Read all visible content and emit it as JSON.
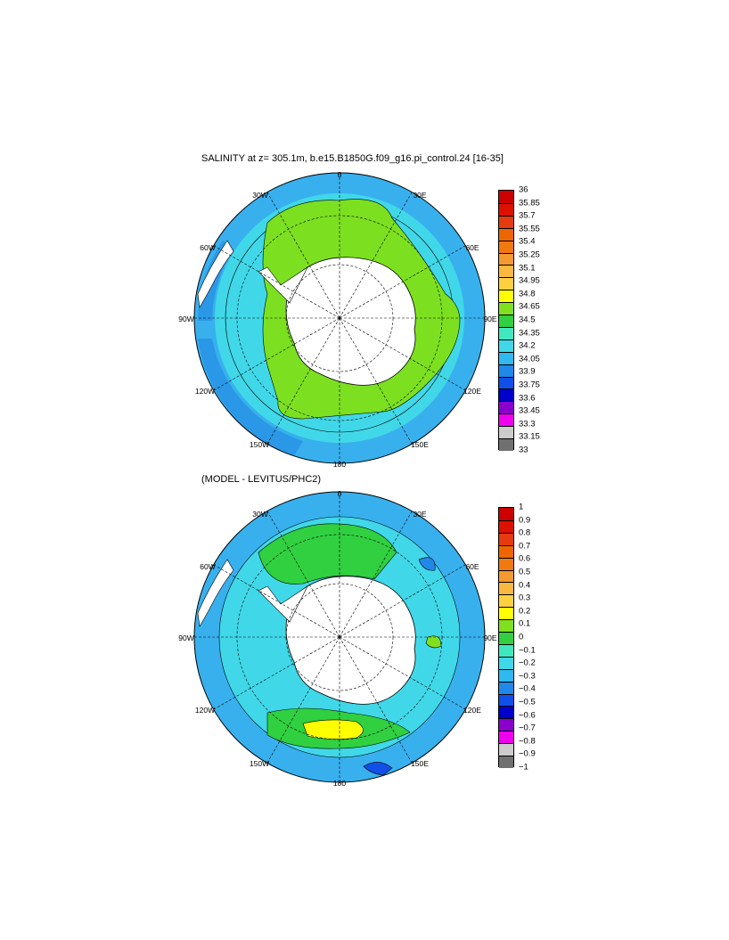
{
  "panel1": {
    "title": "SALINITY at z= 305.1m, b.e15.B1850G.f09_g16.pi_control.24 [16-35]",
    "longitude_labels": {
      "top": "0",
      "upper_left": "30W",
      "upper_right": "30E",
      "left_upper": "60W",
      "right_upper": "60E",
      "left": "90W",
      "right": "90E",
      "left_lower": "120W",
      "right_lower": "120E",
      "lower_left": "150W",
      "lower_right": "150E",
      "bottom": "180"
    },
    "colorbar": {
      "labels": [
        "36",
        "35.85",
        "35.7",
        "35.55",
        "35.4",
        "35.25",
        "35.1",
        "34.95",
        "34.8",
        "34.65",
        "34.5",
        "34.35",
        "34.2",
        "34.05",
        "33.9",
        "33.75",
        "33.6",
        "33.45",
        "33.3",
        "33.15",
        "33"
      ],
      "colors": [
        "#cc0000",
        "#dd1100",
        "#e63a10",
        "#ee6600",
        "#f07a10",
        "#f59a30",
        "#f9b840",
        "#fdd040",
        "#ffff00",
        "#80e020",
        "#30d040",
        "#40e8c0",
        "#40d8e8",
        "#30b8f0",
        "#2088e8",
        "#1050e8",
        "#0000cc",
        "#8a00cc",
        "#ee00ee",
        "#cccccc",
        "#707070"
      ]
    }
  },
  "panel2": {
    "title": "(MODEL - LEVITUS/PHC2)",
    "longitude_labels": {
      "top": "0",
      "upper_left": "30W",
      "upper_right": "30E",
      "left_upper": "60W",
      "right_upper": "60E",
      "left": "90W",
      "right": "90E",
      "left_lower": "120W",
      "right_lower": "120E",
      "lower_left": "150W",
      "lower_right": "150E",
      "bottom": "180"
    },
    "colorbar": {
      "labels": [
        "1",
        "0.9",
        "0.8",
        "0.7",
        "0.6",
        "0.5",
        "0.4",
        "0.3",
        "0.2",
        "0.1",
        "0",
        "−0.1",
        "−0.2",
        "−0.3",
        "−0.4",
        "−0.5",
        "−0.6",
        "−0.7",
        "−0.8",
        "−0.9",
        "−1"
      ],
      "colors": [
        "#cc0000",
        "#dd1100",
        "#e63a10",
        "#ee6600",
        "#f07a10",
        "#f59a30",
        "#f9b840",
        "#fdd040",
        "#ffff00",
        "#80e020",
        "#30d040",
        "#40e8c0",
        "#40d8e8",
        "#30b8f0",
        "#2088e8",
        "#1050e8",
        "#0000cc",
        "#8a00cc",
        "#ee00ee",
        "#cccccc",
        "#707070"
      ]
    }
  },
  "colors": {
    "land": "#ffffff",
    "ocean_outer": "#38b0ee",
    "ocean_mid": "#40d8e8",
    "shelf_green": "#7ce020",
    "coast": "#000000"
  }
}
